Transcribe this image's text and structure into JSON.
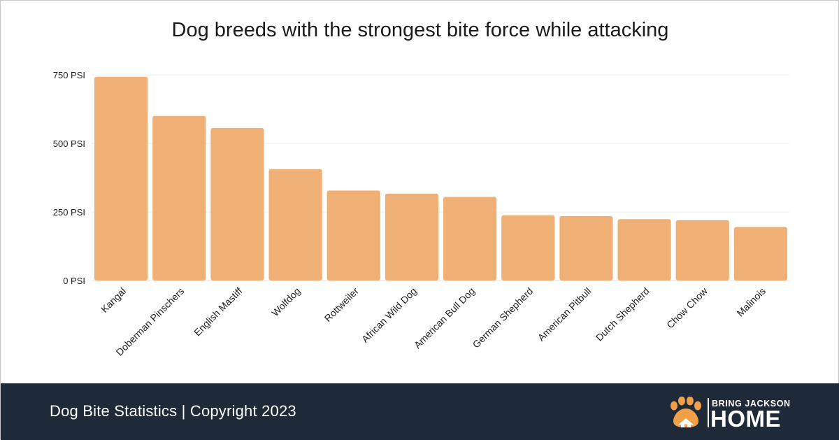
{
  "chart_data": {
    "type": "bar",
    "title": "Dog breeds with the strongest bite force while attacking",
    "categories": [
      "Kangal",
      "Doberman Pinschers",
      "English Mastiff",
      "Wolfdog",
      "Rottweiler",
      "African Wild Dog",
      "American Bull Dog",
      "German Shepherd",
      "American Pitbull",
      "Dutch Shepherd",
      "Chow Chow",
      "Malinois"
    ],
    "values": [
      743,
      600,
      556,
      406,
      328,
      317,
      305,
      238,
      235,
      224,
      220,
      195
    ],
    "ylim": [
      0,
      750
    ],
    "yticks": [
      0,
      250,
      500,
      750
    ],
    "ytick_labels": [
      "0 PSI",
      "250 PSI",
      "500 PSI",
      "750 PSI"
    ],
    "xlabel": "",
    "ylabel": "",
    "grid": true,
    "bar_color": "#f0b075",
    "grid_color": "#ececec"
  },
  "footer": {
    "text": "Dog Bite Statistics  |  Copyright 2023",
    "background": "#1e2a37",
    "logo_top": "BRING JACKSON",
    "logo_bottom": "HOME",
    "logo_color": "#f0a048"
  }
}
